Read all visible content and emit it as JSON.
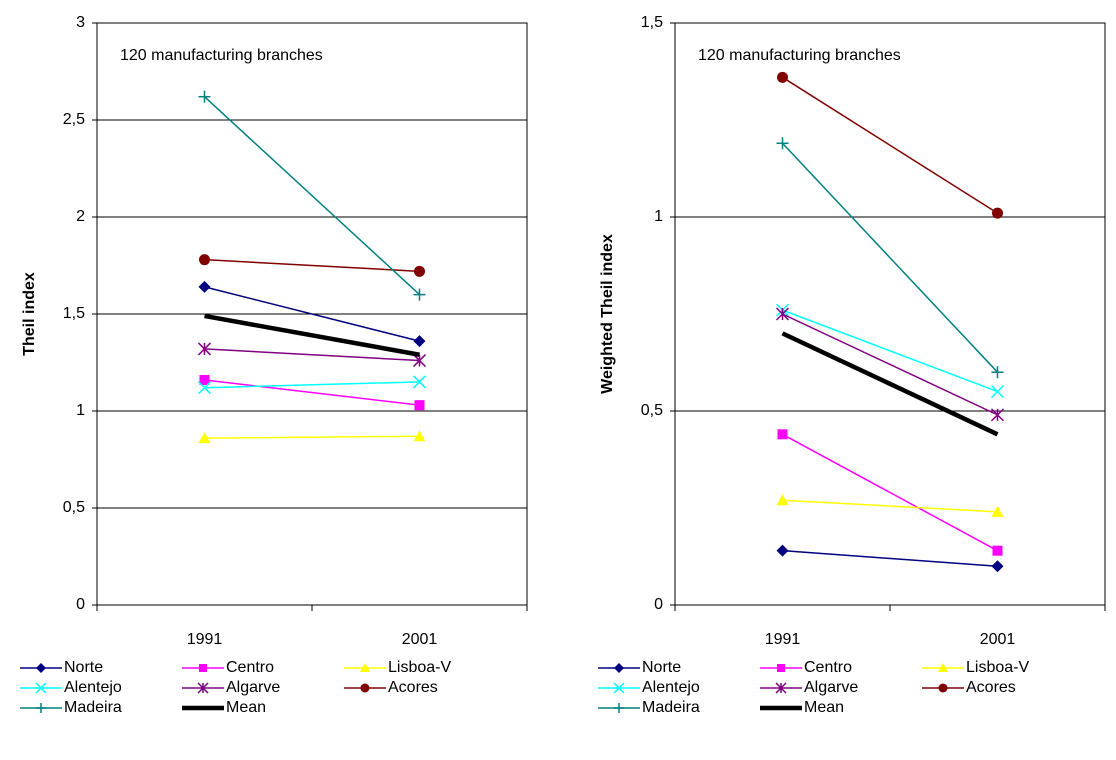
{
  "chart_data": [
    {
      "type": "line",
      "annotation": "120 manufacturing branches",
      "y_label": "Theil index",
      "categories": [
        "1991",
        "2001"
      ],
      "ylim": [
        0,
        3
      ],
      "yticks": [
        0,
        {
          "value": 0.5,
          "label": "0,5"
        },
        1,
        {
          "value": 1.5,
          "label": "1,5"
        },
        2,
        {
          "value": 2.5,
          "label": "2,5"
        },
        3
      ],
      "grid": true,
      "series": [
        {
          "name": "Norte",
          "color": "#000080",
          "marker": "diamond",
          "values": [
            1.64,
            1.36
          ]
        },
        {
          "name": "Centro",
          "color": "#ff00ff",
          "marker": "square",
          "values": [
            1.16,
            1.03
          ]
        },
        {
          "name": "Lisboa-V",
          "color": "#ffff00",
          "marker": "triangle",
          "values": [
            0.86,
            0.87
          ]
        },
        {
          "name": "Alentejo",
          "color": "#00ffff",
          "marker": "x",
          "values": [
            1.12,
            1.15
          ]
        },
        {
          "name": "Algarve",
          "color": "#800080",
          "marker": "asterisk",
          "values": [
            1.32,
            1.26
          ]
        },
        {
          "name": "Acores",
          "color": "#800000",
          "marker": "circle",
          "values": [
            1.78,
            1.72
          ]
        },
        {
          "name": "Madeira",
          "color": "#008080",
          "marker": "plus",
          "values": [
            2.62,
            1.6
          ]
        },
        {
          "name": "Mean",
          "color": "#000000",
          "marker": "none",
          "values": [
            1.49,
            1.29
          ]
        }
      ]
    },
    {
      "type": "line",
      "annotation": "120 manufacturing branches",
      "y_label": "Weighted Theil index",
      "categories": [
        "1991",
        "2001"
      ],
      "ylim": [
        0,
        1.5
      ],
      "yticks": [
        0,
        {
          "value": 0.5,
          "label": "0,5"
        },
        1,
        {
          "value": 1.5,
          "label": "1,5"
        }
      ],
      "grid": true,
      "series": [
        {
          "name": "Norte",
          "color": "#000080",
          "marker": "diamond",
          "values": [
            0.14,
            0.1
          ]
        },
        {
          "name": "Centro",
          "color": "#ff00ff",
          "marker": "square",
          "values": [
            0.44,
            0.14
          ]
        },
        {
          "name": "Lisboa-V",
          "color": "#ffff00",
          "marker": "triangle",
          "values": [
            0.27,
            0.24
          ]
        },
        {
          "name": "Alentejo",
          "color": "#00ffff",
          "marker": "x",
          "values": [
            0.76,
            0.55
          ]
        },
        {
          "name": "Algarve",
          "color": "#800080",
          "marker": "asterisk",
          "values": [
            0.75,
            0.49
          ]
        },
        {
          "name": "Acores",
          "color": "#800000",
          "marker": "circle",
          "values": [
            1.36,
            1.01
          ]
        },
        {
          "name": "Madeira",
          "color": "#008080",
          "marker": "plus",
          "values": [
            1.19,
            0.6
          ]
        },
        {
          "name": "Mean",
          "color": "#000000",
          "marker": "none",
          "values": [
            0.7,
            0.44
          ]
        }
      ]
    }
  ]
}
